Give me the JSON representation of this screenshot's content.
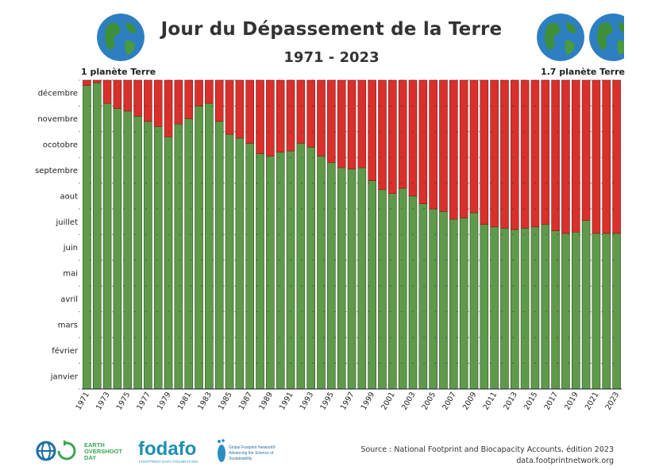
{
  "title": "Jour du Dépassement de la Terre",
  "subtitle": "1971 - 2023",
  "left_label": "1 planète Terre",
  "right_label": "1.7 planète Terre",
  "source_line1": "Source : National Footprint and Biocapacity Accounts, édition 2023",
  "source_line2": "data.footprintnetwork.org",
  "logos": {
    "eod": [
      "EARTH",
      "OVERSHOOT",
      "DAY"
    ],
    "fodafo": "fodafo",
    "fodafo_sub": "FOOTPRINT DATA FOUNDATION",
    "gfn": [
      "Global Footprint Network®",
      "Advancing the Science of Sustainability"
    ]
  },
  "colors": {
    "green": "#5e9a4a",
    "red": "#d9302c",
    "grid": "#1a1a1a"
  },
  "icons": [
    "earth-globe-icon",
    "earth-overshoot-day-logo-icon",
    "fodafo-logo-icon",
    "global-footprint-network-logo-icon"
  ],
  "chart_data": {
    "type": "bar",
    "stacked": true,
    "title": "Jour du Dépassement de la Terre",
    "subtitle": "1971 - 2023",
    "y_unit": "month of year (0 = 1 janvier, 12 = 31 décembre)",
    "ylim": [
      0,
      12
    ],
    "y_tick_labels": [
      "janvier",
      "février",
      "mars",
      "avril",
      "mai",
      "juin",
      "juillet",
      "aout",
      "septembre",
      "ocotobre",
      "novembre",
      "décembre"
    ],
    "x_tick_labels": [
      "1971",
      "1973",
      "1975",
      "1977",
      "1979",
      "1981",
      "1983",
      "1985",
      "1987",
      "1989",
      "1991",
      "1993",
      "1995",
      "1997",
      "1999",
      "2001",
      "2003",
      "2005",
      "2007",
      "2009",
      "2011",
      "2013",
      "2015",
      "2017",
      "2019",
      "2021",
      "2023"
    ],
    "categories": [
      "1971",
      "1972",
      "1973",
      "1974",
      "1975",
      "1976",
      "1977",
      "1978",
      "1979",
      "1980",
      "1981",
      "1982",
      "1983",
      "1984",
      "1985",
      "1986",
      "1987",
      "1988",
      "1989",
      "1990",
      "1991",
      "1992",
      "1993",
      "1994",
      "1995",
      "1996",
      "1997",
      "1998",
      "1999",
      "2000",
      "2001",
      "2002",
      "2003",
      "2004",
      "2005",
      "2006",
      "2007",
      "2008",
      "2009",
      "2010",
      "2011",
      "2012",
      "2013",
      "2014",
      "2015",
      "2016",
      "2017",
      "2018",
      "2019",
      "2020",
      "2021",
      "2022",
      "2023"
    ],
    "series": [
      {
        "color": "#5e9a4a",
        "values": [
          11.8,
          11.9,
          11.1,
          10.9,
          10.8,
          10.6,
          10.4,
          10.2,
          9.8,
          10.3,
          10.5,
          11.0,
          11.1,
          10.4,
          9.9,
          9.75,
          9.55,
          9.15,
          9.05,
          9.2,
          9.25,
          9.55,
          9.4,
          9.05,
          8.8,
          8.6,
          8.55,
          8.6,
          8.1,
          7.75,
          7.6,
          7.8,
          7.5,
          7.2,
          7.0,
          6.9,
          6.6,
          6.65,
          6.85,
          6.4,
          6.3,
          6.25,
          6.2,
          6.25,
          6.3,
          6.4,
          6.15,
          6.05,
          6.1,
          6.55,
          6.05,
          6.05,
          6.05
        ]
      },
      {
        "color": "#d9302c",
        "values": [
          0.2,
          0.1,
          0.9,
          1.1,
          1.2,
          1.4,
          1.6,
          1.8,
          2.2,
          1.7,
          1.5,
          1.0,
          0.9,
          1.6,
          2.1,
          2.25,
          2.45,
          2.85,
          2.95,
          2.8,
          2.75,
          2.45,
          2.6,
          2.95,
          3.2,
          3.4,
          3.45,
          3.4,
          3.9,
          4.25,
          4.4,
          4.2,
          4.5,
          4.8,
          5.0,
          5.1,
          5.4,
          5.35,
          5.15,
          5.6,
          5.7,
          5.75,
          5.8,
          5.75,
          5.7,
          5.6,
          5.85,
          5.95,
          5.9,
          5.45,
          5.95,
          5.95,
          5.95
        ]
      }
    ]
  }
}
